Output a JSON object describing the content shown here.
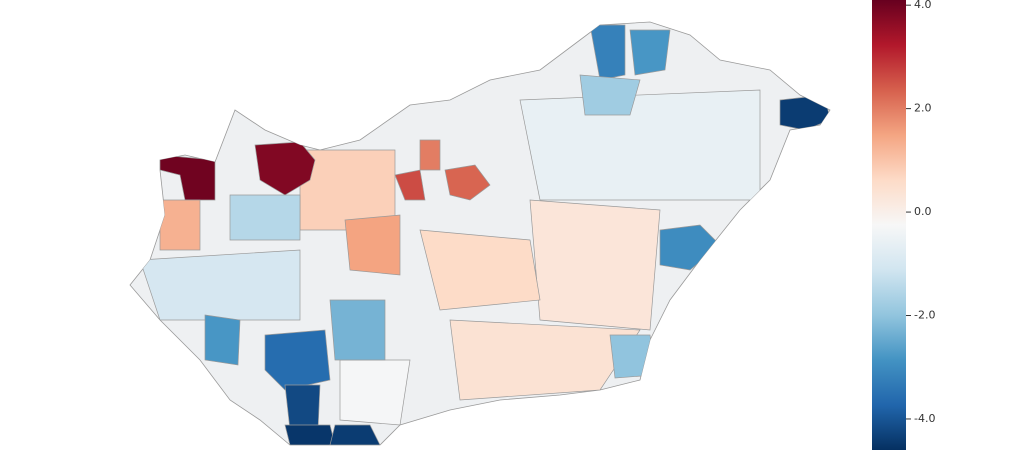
{
  "chart_data": {
    "type": "choropleth",
    "values": [
      -0.6,
      0.3,
      0.4,
      -1.0,
      0.8,
      0.6,
      -0.3,
      4.0,
      3.8,
      2.6,
      2.3,
      2.0,
      1.5,
      1.3,
      -1.5,
      -4.4,
      -3.2,
      -2.8,
      -3.0,
      -3.6,
      -4.2,
      -4.5,
      -4.4,
      -2.8,
      -2.0,
      -1.8,
      -2.3
    ],
    "clim": [
      -4.6,
      4.1
    ],
    "colorbar_ticks": [
      {
        "value": 4,
        "label": "4.0"
      },
      {
        "value": 2,
        "label": "2.0"
      },
      {
        "value": 0,
        "label": "0.0"
      },
      {
        "value": -2,
        "label": "-2.0"
      },
      {
        "value": -4,
        "label": "-4.0"
      }
    ],
    "colormap": [
      "#053061",
      "#2166ac",
      "#4393c3",
      "#92c5de",
      "#d1e5f0",
      "#f7f7f7",
      "#fddbc7",
      "#f4a582",
      "#d6604d",
      "#b2182b",
      "#67001f"
    ]
  }
}
